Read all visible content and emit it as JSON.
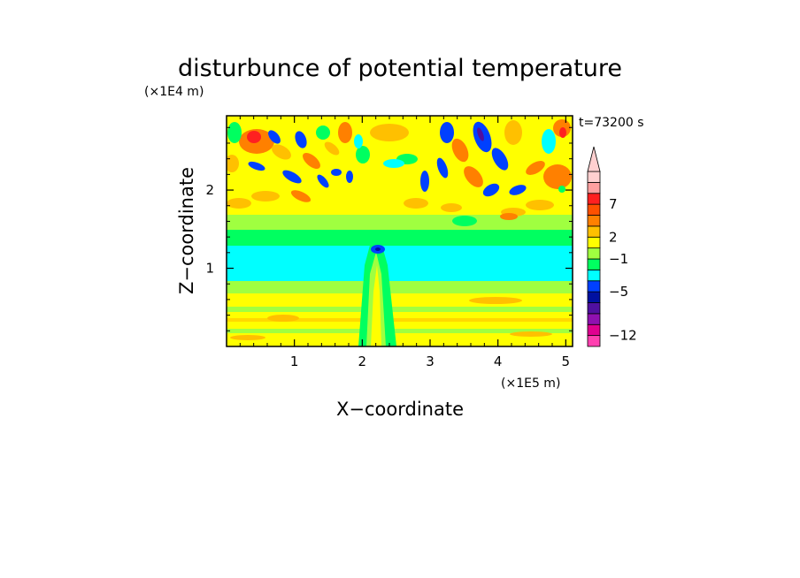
{
  "chart_data": {
    "type": "heatmap",
    "title": "disturbunce of potential temperature",
    "time_label": "t=73200 s",
    "xlabel": "X−coordinate",
    "ylabel": "Z−coordinate",
    "x_unit": "(×1E5 m)",
    "y_unit": "(×1E4 m)",
    "xlim": [
      0,
      5.1
    ],
    "ylim": [
      0,
      2.95
    ],
    "x_ticks": [
      {
        "value": 1,
        "label": "1"
      },
      {
        "value": 2,
        "label": "2"
      },
      {
        "value": 3,
        "label": "3"
      },
      {
        "value": 4,
        "label": "4"
      },
      {
        "value": 5,
        "label": "5"
      }
    ],
    "y_ticks": [
      {
        "value": 1,
        "label": "1"
      },
      {
        "value": 2,
        "label": "2"
      }
    ],
    "colorbar": {
      "levels": [
        {
          "color": "#ff40b0"
        },
        {
          "color": "#e00090",
          "label": "−12"
        },
        {
          "color": "#9010b0"
        },
        {
          "color": "#5010a0"
        },
        {
          "color": "#0010a0"
        },
        {
          "color": "#0040ff",
          "label": "−5"
        },
        {
          "color": "#00ffff"
        },
        {
          "color": "#00ff60"
        },
        {
          "color": "#a0ff40",
          "label": "−1"
        },
        {
          "color": "#ffff00"
        },
        {
          "color": "#ffc000",
          "label": "2"
        },
        {
          "color": "#ff8000"
        },
        {
          "color": "#ff5000"
        },
        {
          "color": "#ff2020",
          "label": "7"
        },
        {
          "color": "#ffa0a0"
        },
        {
          "color": "#ffd0d0"
        }
      ]
    }
  }
}
